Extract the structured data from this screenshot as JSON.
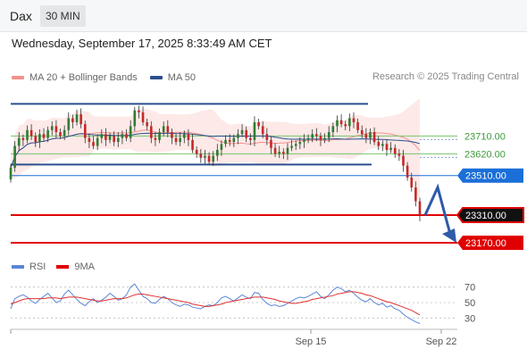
{
  "header": {
    "symbol": "Dax",
    "interval": "30 MIN",
    "datetime": "Wednesday, September 17, 2025 8:33:49 AM CET"
  },
  "legend": {
    "bollinger_label": "MA 20 + Bollinger Bands",
    "ma50_label": "MA 50",
    "credit": "Research © 2025 Trading Central"
  },
  "rsi_legend": {
    "rsi_label": "RSI",
    "ma9_label": "9MA"
  },
  "colors": {
    "bollinger": "#f4928c",
    "bollinger_fill": "#fde3e1",
    "ma50": "#2c4f8f",
    "resistance": "#2c4f8f",
    "support_red": "#e00000",
    "pivot_blue": "#1a6fd8",
    "green_level": "#7ac46c",
    "rsi": "#5b86d6",
    "rsi_ma": "#e03030",
    "candle_up": "#2e7d32",
    "candle_down": "#c62828"
  },
  "chart_data": [
    {
      "type": "candlestick",
      "x_ticks": [
        "Sep 15",
        "Sep 22"
      ],
      "levels": [
        {
          "value": 23710.0,
          "label": "23710.00",
          "style": "green"
        },
        {
          "value": 23620.0,
          "label": "23620.00",
          "style": "green"
        },
        {
          "value": 23510.0,
          "label": "23510.00",
          "style": "blue-tag"
        },
        {
          "value": 23310.0,
          "label": "23310.00",
          "style": "black-tag"
        },
        {
          "value": 23170.0,
          "label": "23170.00",
          "style": "red-tag"
        }
      ],
      "channel_upper": 23873,
      "channel_lower": 23566,
      "close_series": [
        23550,
        23660,
        23700,
        23690,
        23740,
        23710,
        23680,
        23720,
        23700,
        23740,
        23760,
        23730,
        23710,
        23740,
        23800,
        23780,
        23820,
        23770,
        23700,
        23680,
        23660,
        23700,
        23720,
        23690,
        23710,
        23680,
        23700,
        23720,
        23700,
        23760,
        23840,
        23830,
        23780,
        23760,
        23700,
        23690,
        23730,
        23760,
        23730,
        23700,
        23680,
        23700,
        23720,
        23690,
        23640,
        23620,
        23600,
        23610,
        23580,
        23610,
        23640,
        23670,
        23690,
        23680,
        23700,
        23720,
        23740,
        23700,
        23690,
        23780,
        23760,
        23720,
        23690,
        23650,
        23620,
        23630,
        23620,
        23650,
        23660,
        23670,
        23680,
        23690,
        23700,
        23720,
        23710,
        23690,
        23700,
        23730,
        23760,
        23790,
        23770,
        23760,
        23800,
        23780,
        23740,
        23720,
        23700,
        23730,
        23680,
        23660,
        23670,
        23640,
        23650,
        23620,
        23610,
        23560,
        23500,
        23450,
        23380,
        23310
      ],
      "forecast": {
        "from": 23310,
        "via": 23450,
        "to": 23170
      }
    },
    {
      "type": "line",
      "name": "RSI",
      "y_ticks": [
        70,
        50,
        30
      ],
      "ylim": [
        20,
        80
      ],
      "series": [
        {
          "name": "RSI",
          "values": [
            42,
            55,
            58,
            60,
            57,
            52,
            49,
            54,
            58,
            62,
            56,
            50,
            52,
            61,
            66,
            60,
            54,
            49,
            46,
            51,
            55,
            50,
            53,
            57,
            62,
            58,
            53,
            55,
            60,
            70,
            74,
            66,
            58,
            55,
            50,
            49,
            54,
            58,
            55,
            50,
            47,
            45,
            48,
            47,
            44,
            43,
            42,
            45,
            47,
            46,
            50,
            56,
            58,
            55,
            52,
            56,
            60,
            57,
            55,
            63,
            62,
            54,
            49,
            46,
            47,
            45,
            46,
            49,
            52,
            55,
            57,
            56,
            58,
            61,
            64,
            58,
            55,
            60,
            66,
            70,
            68,
            64,
            66,
            62,
            57,
            53,
            51,
            55,
            50,
            47,
            49,
            44,
            46,
            42,
            40,
            35,
            31,
            28,
            25,
            23
          ]
        },
        {
          "name": "9MA",
          "values": [
            48,
            50,
            52,
            54,
            55,
            55,
            55,
            55,
            55,
            56,
            56,
            56,
            55,
            56,
            57,
            57,
            57,
            56,
            55,
            54,
            53,
            52,
            52,
            53,
            54,
            55,
            55,
            55,
            56,
            58,
            60,
            61,
            61,
            60,
            59,
            58,
            57,
            56,
            55,
            54,
            53,
            52,
            51,
            50,
            48,
            47,
            46,
            45,
            45,
            46,
            47,
            48,
            50,
            51,
            52,
            53,
            54,
            55,
            56,
            57,
            57,
            57,
            56,
            55,
            54,
            52,
            51,
            50,
            49,
            49,
            50,
            51,
            52,
            54,
            55,
            56,
            57,
            58,
            59,
            61,
            62,
            63,
            64,
            64,
            63,
            62,
            60,
            59,
            57,
            55,
            53,
            51,
            50,
            48,
            46,
            44,
            42,
            40,
            37,
            34
          ]
        }
      ]
    }
  ]
}
